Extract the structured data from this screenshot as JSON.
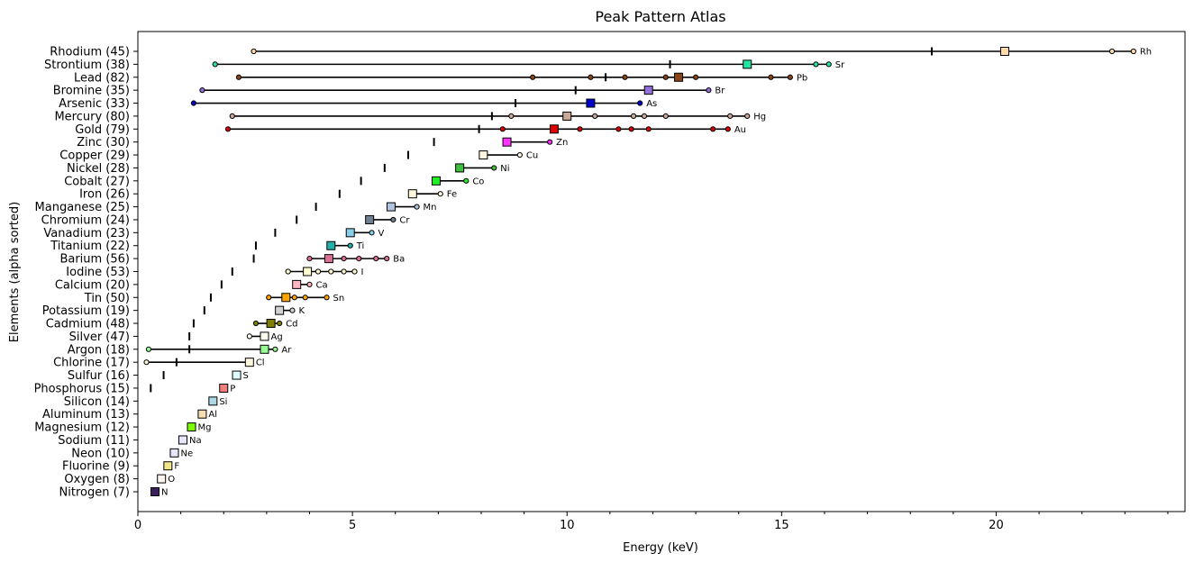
{
  "chart_data": {
    "type": "scatter",
    "title": "Peak Pattern Atlas",
    "xlabel": "Energy (keV)",
    "ylabel": "Elements (alpha sorted)",
    "xlim": [
      0,
      24.4
    ],
    "x_ticks": [
      0,
      5,
      10,
      15,
      20
    ],
    "x_minor_step": 1,
    "grid": false,
    "legend": "none",
    "rows": [
      {
        "label": "Rhodium (45)",
        "symbol": "Rh",
        "color": "#ffd9a8",
        "main": 20.2,
        "tick": 18.5,
        "peaks": [
          2.7,
          22.7,
          23.2
        ]
      },
      {
        "label": "Strontium (38)",
        "symbol": "Sr",
        "color": "#22e6a0",
        "main": 14.2,
        "tick": 12.4,
        "peaks": [
          1.8,
          15.8,
          16.1
        ]
      },
      {
        "label": "Lead (82)",
        "symbol": "Pb",
        "color": "#8b4513",
        "main": 12.6,
        "tick": 10.9,
        "peaks": [
          2.35,
          9.2,
          10.55,
          11.35,
          12.3,
          13.0,
          14.75,
          15.2
        ]
      },
      {
        "label": "Bromine (35)",
        "symbol": "Br",
        "color": "#9370db",
        "main": 11.9,
        "tick": 10.2,
        "peaks": [
          1.5,
          13.3
        ]
      },
      {
        "label": "Arsenic (33)",
        "symbol": "As",
        "color": "#0000cd",
        "main": 10.55,
        "tick": 8.8,
        "peaks": [
          1.3,
          11.7
        ]
      },
      {
        "label": "Mercury (80)",
        "symbol": "Hg",
        "color": "#c8a896",
        "main": 10.0,
        "tick": 8.25,
        "peaks": [
          2.2,
          8.7,
          10.65,
          11.55,
          11.8,
          12.3,
          13.8,
          14.2
        ]
      },
      {
        "label": "Gold (79)",
        "symbol": "Au",
        "color": "#e00000",
        "main": 9.7,
        "tick": 7.95,
        "peaks": [
          2.1,
          8.5,
          10.3,
          11.2,
          11.5,
          11.9,
          13.4,
          13.75
        ]
      },
      {
        "label": "Zinc (30)",
        "symbol": "Zn",
        "color": "#ff33ff",
        "main": 8.6,
        "tick": 6.9,
        "peaks": [
          9.6
        ]
      },
      {
        "label": "Copper (29)",
        "symbol": "Cu",
        "color": "#fff5e0",
        "main": 8.05,
        "tick": 6.3,
        "peaks": [
          8.9
        ]
      },
      {
        "label": "Nickel (28)",
        "symbol": "Ni",
        "color": "#40c040",
        "main": 7.5,
        "tick": 5.75,
        "peaks": [
          8.3
        ]
      },
      {
        "label": "Cobalt (27)",
        "symbol": "Co",
        "color": "#22ee22",
        "main": 6.95,
        "tick": 5.2,
        "peaks": [
          7.65
        ]
      },
      {
        "label": "Iron (26)",
        "symbol": "Fe",
        "color": "#fff8dc",
        "main": 6.4,
        "tick": 4.7,
        "peaks": [
          7.05
        ]
      },
      {
        "label": "Manganese (25)",
        "symbol": "Mn",
        "color": "#b0c4de",
        "main": 5.9,
        "tick": 4.15,
        "peaks": [
          6.5
        ]
      },
      {
        "label": "Chromium (24)",
        "symbol": "Cr",
        "color": "#708090",
        "main": 5.4,
        "tick": 3.7,
        "peaks": [
          5.95
        ]
      },
      {
        "label": "Vanadium (23)",
        "symbol": "V",
        "color": "#87ceeb",
        "main": 4.95,
        "tick": 3.2,
        "peaks": [
          5.45
        ]
      },
      {
        "label": "Titanium (22)",
        "symbol": "Ti",
        "color": "#20b2aa",
        "main": 4.5,
        "tick": 2.75,
        "peaks": [
          4.95
        ]
      },
      {
        "label": "Barium (56)",
        "symbol": "Ba",
        "color": "#db7093",
        "main": 4.45,
        "tick": 2.7,
        "peaks": [
          4.0,
          4.8,
          5.15,
          5.55,
          5.8
        ]
      },
      {
        "label": "Iodine (53)",
        "symbol": "I",
        "color": "#fffacd",
        "main": 3.95,
        "tick": 2.2,
        "peaks": [
          3.5,
          4.2,
          4.5,
          4.8,
          5.05
        ]
      },
      {
        "label": "Calcium (20)",
        "symbol": "Ca",
        "color": "#ffb6c1",
        "main": 3.7,
        "tick": 1.95,
        "peaks": [
          4.0
        ]
      },
      {
        "label": "Tin (50)",
        "symbol": "Sn",
        "color": "#ffa500",
        "main": 3.45,
        "tick": 1.7,
        "peaks": [
          3.05,
          3.65,
          3.9,
          4.4
        ]
      },
      {
        "label": "Potassium (19)",
        "symbol": "K",
        "color": "#d3d3d3",
        "main": 3.3,
        "tick": 1.55,
        "peaks": [
          3.6
        ]
      },
      {
        "label": "Cadmium (48)",
        "symbol": "Cd",
        "color": "#808000",
        "main": 3.1,
        "tick": 1.3,
        "peaks": [
          2.75,
          3.3
        ]
      },
      {
        "label": "Silver (47)",
        "symbol": "Ag",
        "color": "#fffff0",
        "main": 2.95,
        "tick": 1.2,
        "peaks": [
          2.6
        ]
      },
      {
        "label": "Argon (18)",
        "symbol": "Ar",
        "color": "#98fb98",
        "main": 2.95,
        "tick": 1.2,
        "peaks": [
          0.25,
          3.2
        ]
      },
      {
        "label": "Chlorine (17)",
        "symbol": "Cl",
        "color": "#fff8dc",
        "main": 2.6,
        "tick": 0.9,
        "peaks": [
          0.2
        ]
      },
      {
        "label": "Sulfur (16)",
        "symbol": "S",
        "color": "#e0ffff",
        "main": 2.3,
        "tick": 0.6,
        "peaks": []
      },
      {
        "label": "Phosphorus (15)",
        "symbol": "P",
        "color": "#f08080",
        "main": 2.0,
        "tick": 0.3,
        "peaks": []
      },
      {
        "label": "Silicon (14)",
        "symbol": "Si",
        "color": "#add8e6",
        "main": 1.75,
        "tick": null,
        "peaks": []
      },
      {
        "label": "Aluminum (13)",
        "symbol": "Al",
        "color": "#f5deb3",
        "main": 1.5,
        "tick": null,
        "peaks": []
      },
      {
        "label": "Magnesium (12)",
        "symbol": "Mg",
        "color": "#7cfc00",
        "main": 1.25,
        "tick": null,
        "peaks": []
      },
      {
        "label": "Sodium (11)",
        "symbol": "Na",
        "color": "#e6e6fa",
        "main": 1.05,
        "tick": null,
        "peaks": []
      },
      {
        "label": "Neon (10)",
        "symbol": "Ne",
        "color": "#e6e6fa",
        "main": 0.85,
        "tick": null,
        "peaks": []
      },
      {
        "label": "Fluorine (9)",
        "symbol": "F",
        "color": "#f0e68c",
        "main": 0.7,
        "tick": null,
        "peaks": []
      },
      {
        "label": "Oxygen (8)",
        "symbol": "O",
        "color": "#fff5ee",
        "main": 0.55,
        "tick": null,
        "peaks": []
      },
      {
        "label": "Nitrogen (7)",
        "symbol": "N",
        "color": "#3b1f5c",
        "main": 0.4,
        "tick": null,
        "peaks": []
      }
    ]
  }
}
